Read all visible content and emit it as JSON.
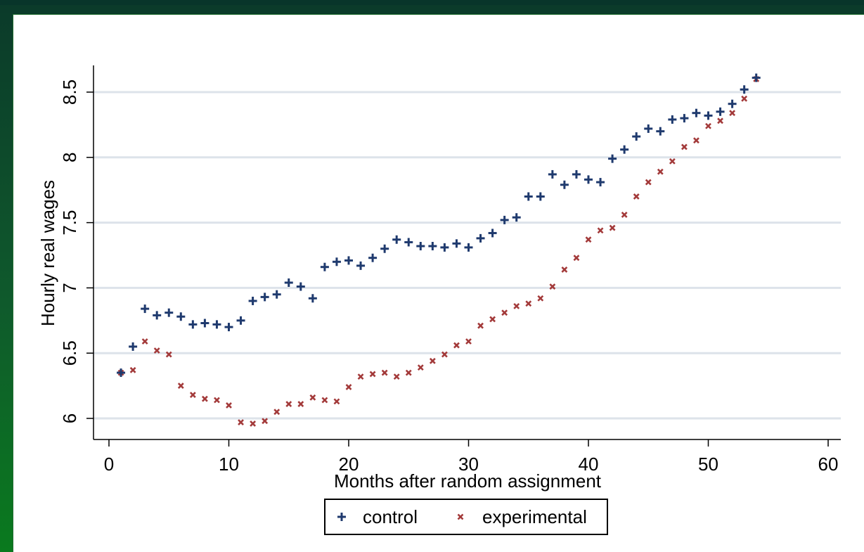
{
  "chart_data": {
    "type": "scatter",
    "xlabel": "Months after random assignment",
    "ylabel": "Hourly real wages",
    "xlim": [
      0,
      60
    ],
    "ylim": [
      5.85,
      8.7
    ],
    "xticks": [
      0,
      10,
      20,
      30,
      40,
      50,
      60
    ],
    "yticks": [
      6,
      6.5,
      7,
      7.5,
      8,
      8.5
    ],
    "xtick_labels": [
      "0",
      "10",
      "20",
      "30",
      "40",
      "50",
      "60"
    ],
    "ytick_labels": [
      "6",
      "6.5",
      "7",
      "7.5",
      "8",
      "8.5"
    ],
    "grid": "horizontal",
    "legend_position": "bottom",
    "series": [
      {
        "name": "control",
        "marker": "plus",
        "color": "#1f3a6e",
        "x": [
          1,
          2,
          3,
          4,
          5,
          6,
          7,
          8,
          9,
          10,
          11,
          12,
          13,
          14,
          15,
          16,
          17,
          18,
          19,
          20,
          21,
          22,
          23,
          24,
          25,
          26,
          27,
          28,
          29,
          30,
          31,
          32,
          33,
          34,
          35,
          36,
          37,
          38,
          39,
          40,
          41,
          42,
          43,
          44,
          45,
          46,
          47,
          48,
          49,
          50,
          51,
          52,
          53,
          54
        ],
        "y": [
          6.35,
          6.55,
          6.84,
          6.79,
          6.81,
          6.78,
          6.72,
          6.73,
          6.72,
          6.7,
          6.75,
          6.9,
          6.93,
          6.95,
          7.04,
          7.01,
          6.92,
          7.16,
          7.2,
          7.21,
          7.17,
          7.23,
          7.3,
          7.37,
          7.35,
          7.32,
          7.32,
          7.31,
          7.34,
          7.31,
          7.38,
          7.42,
          7.52,
          7.54,
          7.7,
          7.7,
          7.87,
          7.79,
          7.87,
          7.83,
          7.81,
          7.99,
          8.06,
          8.16,
          8.22,
          8.2,
          8.29,
          8.3,
          8.34,
          8.32,
          8.35,
          8.41,
          8.52,
          8.61
        ]
      },
      {
        "name": "experimental",
        "marker": "x",
        "color": "#a33a3a",
        "x": [
          1,
          2,
          3,
          4,
          5,
          6,
          7,
          8,
          9,
          10,
          11,
          12,
          13,
          14,
          15,
          16,
          17,
          18,
          19,
          20,
          21,
          22,
          23,
          24,
          25,
          26,
          27,
          28,
          29,
          30,
          31,
          32,
          33,
          34,
          35,
          36,
          37,
          38,
          39,
          40,
          41,
          42,
          43,
          44,
          45,
          46,
          47,
          48,
          49,
          50,
          51,
          52,
          53,
          54
        ],
        "y": [
          6.35,
          6.37,
          6.59,
          6.52,
          6.49,
          6.25,
          6.18,
          6.15,
          6.14,
          6.1,
          5.97,
          5.96,
          5.98,
          6.05,
          6.11,
          6.11,
          6.16,
          6.14,
          6.13,
          6.24,
          6.32,
          6.34,
          6.35,
          6.32,
          6.35,
          6.39,
          6.44,
          6.49,
          6.56,
          6.59,
          6.71,
          6.76,
          6.81,
          6.86,
          6.88,
          6.92,
          7.01,
          7.14,
          7.23,
          7.37,
          7.44,
          7.46,
          7.56,
          7.7,
          7.81,
          7.89,
          7.97,
          8.08,
          8.13,
          8.24,
          8.28,
          8.34,
          8.45,
          8.6
        ]
      }
    ]
  }
}
